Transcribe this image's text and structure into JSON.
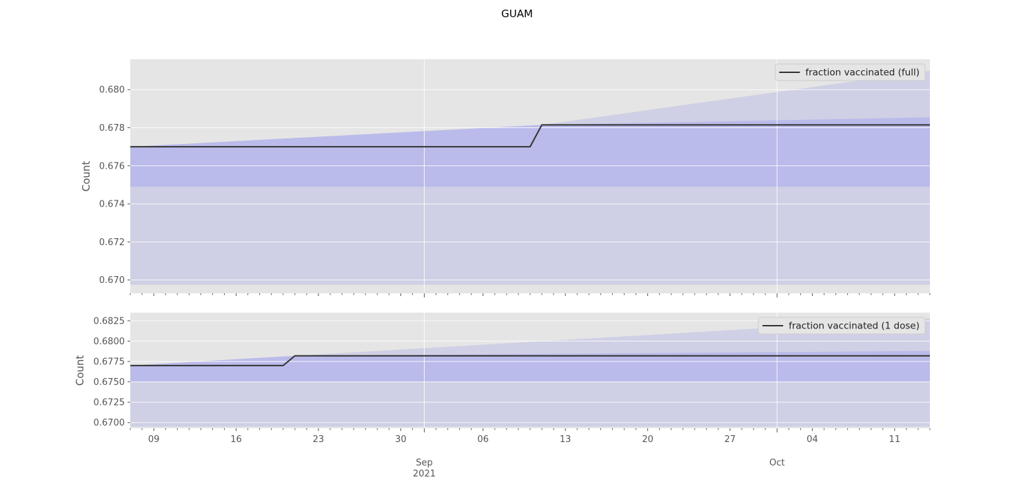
{
  "title": "GUAM",
  "colors": {
    "panel_bg": "#E5E5E5",
    "grid": "#FFFFFF",
    "outer_band": "#CFD0E5",
    "inner_band": "#BABBEA",
    "line": "#333333",
    "tick_text": "#555555"
  },
  "x_axis": {
    "type": "date",
    "range": [
      "2021-08-07",
      "2021-10-14"
    ],
    "minor_tick_labels": [
      "09",
      "16",
      "23",
      "30",
      "06",
      "13",
      "20",
      "27",
      "04",
      "11"
    ],
    "major_tick_labels": [
      {
        "label": "Sep\n2021",
        "date": "2021-09-01"
      },
      {
        "label": "Oct",
        "date": "2021-10-01"
      }
    ]
  },
  "chart_data": [
    {
      "type": "line",
      "ylabel": "Count",
      "ylim": [
        0.6693,
        0.6816
      ],
      "yticks": [
        0.67,
        0.672,
        0.674,
        0.676,
        0.678,
        0.68
      ],
      "ytick_labels": [
        "0.670",
        "0.672",
        "0.674",
        "0.676",
        "0.678",
        "0.680"
      ],
      "grid": true,
      "legend_position": "top-right",
      "series": [
        {
          "name": "fraction vaccinated (full)",
          "x": [
            "2021-08-07",
            "2021-09-10",
            "2021-09-11",
            "2021-10-14"
          ],
          "y": [
            0.677,
            0.677,
            0.67815,
            0.67815
          ]
        }
      ],
      "bands": [
        {
          "kind": "outer",
          "x": [
            "2021-08-07",
            "2021-09-11",
            "2021-10-14"
          ],
          "lower": [
            0.66975,
            0.66975,
            0.66975
          ],
          "upper": [
            0.677,
            0.67815,
            0.681
          ]
        },
        {
          "kind": "inner",
          "x": [
            "2021-08-07",
            "2021-09-11",
            "2021-10-14"
          ],
          "lower": [
            0.6749,
            0.6749,
            0.6749
          ],
          "upper": [
            0.677,
            0.67815,
            0.67855
          ]
        }
      ]
    },
    {
      "type": "line",
      "ylabel": "Count",
      "ylim": [
        0.6693,
        0.6835
      ],
      "yticks": [
        0.67,
        0.6725,
        0.675,
        0.6775,
        0.68,
        0.6825
      ],
      "ytick_labels": [
        "0.6700",
        "0.6725",
        "0.6750",
        "0.6775",
        "0.6800",
        "0.6825"
      ],
      "grid": true,
      "legend_position": "top-right",
      "series": [
        {
          "name": "fraction vaccinated (1 dose)",
          "x": [
            "2021-08-07",
            "2021-08-20",
            "2021-08-21",
            "2021-10-14"
          ],
          "y": [
            0.677,
            0.677,
            0.6782,
            0.6782
          ]
        }
      ],
      "bands": [
        {
          "kind": "outer",
          "x": [
            "2021-08-07",
            "2021-08-21",
            "2021-10-14"
          ],
          "lower": [
            0.6695,
            0.6695,
            0.6695
          ],
          "upper": [
            0.677,
            0.6782,
            0.6828
          ]
        },
        {
          "kind": "inner",
          "x": [
            "2021-08-07",
            "2021-08-21",
            "2021-10-14"
          ],
          "lower": [
            0.675,
            0.675,
            0.675
          ],
          "upper": [
            0.677,
            0.6782,
            0.6788
          ]
        }
      ]
    }
  ]
}
